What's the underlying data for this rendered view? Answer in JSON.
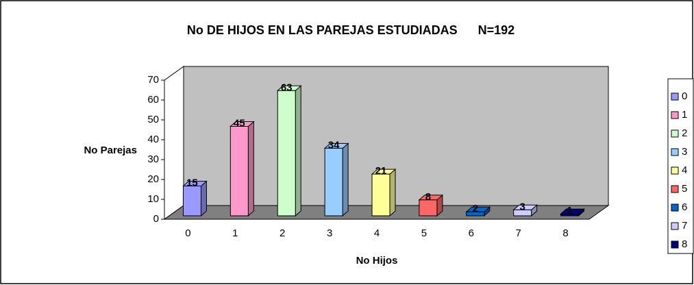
{
  "chart_data": {
    "type": "bar3d",
    "title": "No DE HIJOS EN LAS PAREJAS ESTUDIADAS      N=192",
    "xlabel": "No Hijos",
    "ylabel": "No Parejas",
    "categories": [
      "0",
      "1",
      "2",
      "3",
      "4",
      "5",
      "6",
      "7",
      "8"
    ],
    "values": [
      15,
      45,
      63,
      34,
      21,
      8,
      2,
      3,
      1
    ],
    "colors": [
      "#9999ff",
      "#ff99cc",
      "#ccffcc",
      "#99ccff",
      "#ffff99",
      "#ff6666",
      "#0066cc",
      "#ccccff",
      "#000080"
    ],
    "ylim": [
      0,
      70
    ],
    "yticks": [
      0,
      10,
      20,
      30,
      40,
      50,
      60,
      70
    ],
    "grid": false,
    "legend": "right"
  }
}
